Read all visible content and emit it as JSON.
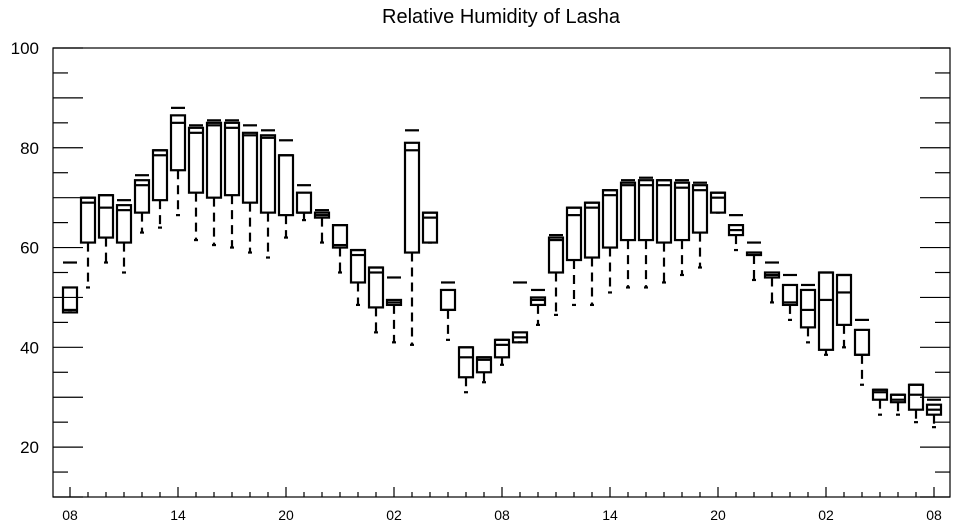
{
  "chart_data": {
    "type": "boxplot",
    "title": "Relative Humidity of Lasha",
    "xlabel": "",
    "ylabel": "",
    "ylim": [
      10,
      100
    ],
    "yticks": [
      20,
      40,
      60,
      80,
      100
    ],
    "x_tick_labels": [
      "08",
      "14",
      "20",
      "02",
      "08",
      "14",
      "20",
      "02",
      "08"
    ],
    "x_tick_hours": [
      0,
      6,
      12,
      18,
      24,
      30,
      36,
      42,
      48
    ],
    "grid": false,
    "boxes": [
      {
        "hour": 0,
        "whisker_low": 47,
        "q1": 47,
        "median": 47.5,
        "q3": 52,
        "whisker_high": 57
      },
      {
        "hour": 1,
        "whisker_low": 52,
        "q1": 61,
        "median": 69,
        "q3": 70,
        "whisker_high": 70
      },
      {
        "hour": 2,
        "whisker_low": 57,
        "q1": 62,
        "median": 68,
        "q3": 70.5,
        "whisker_high": 70.5
      },
      {
        "hour": 3,
        "whisker_low": 55,
        "q1": 61,
        "median": 67.5,
        "q3": 68.5,
        "whisker_high": 69.5
      },
      {
        "hour": 4,
        "whisker_low": 63,
        "q1": 67,
        "median": 72.5,
        "q3": 73.5,
        "whisker_high": 74.5
      },
      {
        "hour": 5,
        "whisker_low": 64,
        "q1": 69.5,
        "median": 78.5,
        "q3": 79.5,
        "whisker_high": 79.5
      },
      {
        "hour": 6,
        "whisker_low": 66.5,
        "q1": 75.5,
        "median": 85,
        "q3": 86.5,
        "whisker_high": 88
      },
      {
        "hour": 7,
        "whisker_low": 61.5,
        "q1": 71,
        "median": 83,
        "q3": 84,
        "whisker_high": 84.5
      },
      {
        "hour": 8,
        "whisker_low": 60.5,
        "q1": 70,
        "median": 84.5,
        "q3": 85,
        "whisker_high": 85.5
      },
      {
        "hour": 9,
        "whisker_low": 60,
        "q1": 70.5,
        "median": 84,
        "q3": 85,
        "whisker_high": 85.5
      },
      {
        "hour": 10,
        "whisker_low": 59,
        "q1": 69,
        "median": 82.5,
        "q3": 83,
        "whisker_high": 84.5
      },
      {
        "hour": 11,
        "whisker_low": 58,
        "q1": 67,
        "median": 82,
        "q3": 82.5,
        "whisker_high": 83.5
      },
      {
        "hour": 12,
        "whisker_low": 62,
        "q1": 66.5,
        "median": 78.5,
        "q3": 78.5,
        "whisker_high": 81.5
      },
      {
        "hour": 13,
        "whisker_low": 65.5,
        "q1": 67,
        "median": 67,
        "q3": 71,
        "whisker_high": 72.5
      },
      {
        "hour": 14,
        "whisker_low": 61,
        "q1": 66,
        "median": 66.5,
        "q3": 67,
        "whisker_high": 67.5
      },
      {
        "hour": 15,
        "whisker_low": 55,
        "q1": 60,
        "median": 60.5,
        "q3": 64.5,
        "whisker_high": 64.5
      },
      {
        "hour": 16,
        "whisker_low": 48.5,
        "q1": 53,
        "median": 58.5,
        "q3": 59.5,
        "whisker_high": 59.5
      },
      {
        "hour": 17,
        "whisker_low": 43,
        "q1": 48,
        "median": 55,
        "q3": 56,
        "whisker_high": 56
      },
      {
        "hour": 18,
        "whisker_low": 41,
        "q1": 48.5,
        "median": 49,
        "q3": 49.5,
        "whisker_high": 54
      },
      {
        "hour": 19,
        "whisker_low": 40.5,
        "q1": 59,
        "median": 79.5,
        "q3": 81,
        "whisker_high": 83.5
      },
      {
        "hour": 20,
        "whisker_low": 61,
        "q1": 61,
        "median": 66,
        "q3": 67,
        "whisker_high": 67
      },
      {
        "hour": 21,
        "whisker_low": 41.5,
        "q1": 47.5,
        "median": 47.5,
        "q3": 51.5,
        "whisker_high": 53
      },
      {
        "hour": 22,
        "whisker_low": 31,
        "q1": 34,
        "median": 38,
        "q3": 40,
        "whisker_high": 40
      },
      {
        "hour": 23,
        "whisker_low": 33,
        "q1": 35,
        "median": 37.5,
        "q3": 38,
        "whisker_high": 38
      },
      {
        "hour": 24,
        "whisker_low": 36.5,
        "q1": 38,
        "median": 40.5,
        "q3": 41.5,
        "whisker_high": 41.5
      },
      {
        "hour": 25,
        "whisker_low": 41,
        "q1": 41,
        "median": 42,
        "q3": 43,
        "whisker_high": 53
      },
      {
        "hour": 26,
        "whisker_low": 44.5,
        "q1": 48.5,
        "median": 49.5,
        "q3": 50,
        "whisker_high": 51.5
      },
      {
        "hour": 27,
        "whisker_low": 46.5,
        "q1": 55,
        "median": 61.5,
        "q3": 62,
        "whisker_high": 62.5
      },
      {
        "hour": 28,
        "whisker_low": 48.5,
        "q1": 57.5,
        "median": 66.5,
        "q3": 68,
        "whisker_high": 68
      },
      {
        "hour": 29,
        "whisker_low": 48.5,
        "q1": 58,
        "median": 68,
        "q3": 69,
        "whisker_high": 69
      },
      {
        "hour": 30,
        "whisker_low": 51,
        "q1": 60,
        "median": 70.5,
        "q3": 71.5,
        "whisker_high": 71.5
      },
      {
        "hour": 31,
        "whisker_low": 52,
        "q1": 61.5,
        "median": 72.5,
        "q3": 73,
        "whisker_high": 73.5
      },
      {
        "hour": 32,
        "whisker_low": 52,
        "q1": 61.5,
        "median": 72.5,
        "q3": 73.5,
        "whisker_high": 74
      },
      {
        "hour": 33,
        "whisker_low": 53,
        "q1": 61,
        "median": 72.5,
        "q3": 73.5,
        "whisker_high": 73.5
      },
      {
        "hour": 34,
        "whisker_low": 54.5,
        "q1": 61.5,
        "median": 72,
        "q3": 73,
        "whisker_high": 73.5
      },
      {
        "hour": 35,
        "whisker_low": 56,
        "q1": 63,
        "median": 71.5,
        "q3": 72.5,
        "whisker_high": 73
      },
      {
        "hour": 36,
        "whisker_low": 67,
        "q1": 67,
        "median": 70,
        "q3": 71,
        "whisker_high": 71
      },
      {
        "hour": 37,
        "whisker_low": 59.5,
        "q1": 62.5,
        "median": 63.5,
        "q3": 64.5,
        "whisker_high": 66.5
      },
      {
        "hour": 38,
        "whisker_low": 53.5,
        "q1": 58.5,
        "median": 59,
        "q3": 59,
        "whisker_high": 61
      },
      {
        "hour": 39,
        "whisker_low": 49,
        "q1": 54,
        "median": 54.5,
        "q3": 55,
        "whisker_high": 57
      },
      {
        "hour": 40,
        "whisker_low": 45.5,
        "q1": 48.5,
        "median": 49,
        "q3": 52.5,
        "whisker_high": 54.5
      },
      {
        "hour": 41,
        "whisker_low": 41,
        "q1": 44,
        "median": 47.5,
        "q3": 51.5,
        "whisker_high": 52.5
      },
      {
        "hour": 42,
        "whisker_low": 38.5,
        "q1": 39.5,
        "median": 49.5,
        "q3": 55,
        "whisker_high": 55
      },
      {
        "hour": 43,
        "whisker_low": 40,
        "q1": 44.5,
        "median": 51,
        "q3": 54.5,
        "whisker_high": 54.5
      },
      {
        "hour": 44,
        "whisker_low": 32.5,
        "q1": 38.5,
        "median": 38.5,
        "q3": 43.5,
        "whisker_high": 45.5
      },
      {
        "hour": 45,
        "whisker_low": 26.5,
        "q1": 29.5,
        "median": 31,
        "q3": 31.5,
        "whisker_high": 31.5
      },
      {
        "hour": 46,
        "whisker_low": 26.5,
        "q1": 29,
        "median": 29.5,
        "q3": 30.5,
        "whisker_high": 30.5
      },
      {
        "hour": 47,
        "whisker_low": 25,
        "q1": 27.5,
        "median": 30.5,
        "q3": 32.5,
        "whisker_high": 32.5
      },
      {
        "hour": 48,
        "whisker_low": 24,
        "q1": 26.5,
        "median": 27.5,
        "q3": 28.5,
        "whisker_high": 29.5
      }
    ]
  }
}
